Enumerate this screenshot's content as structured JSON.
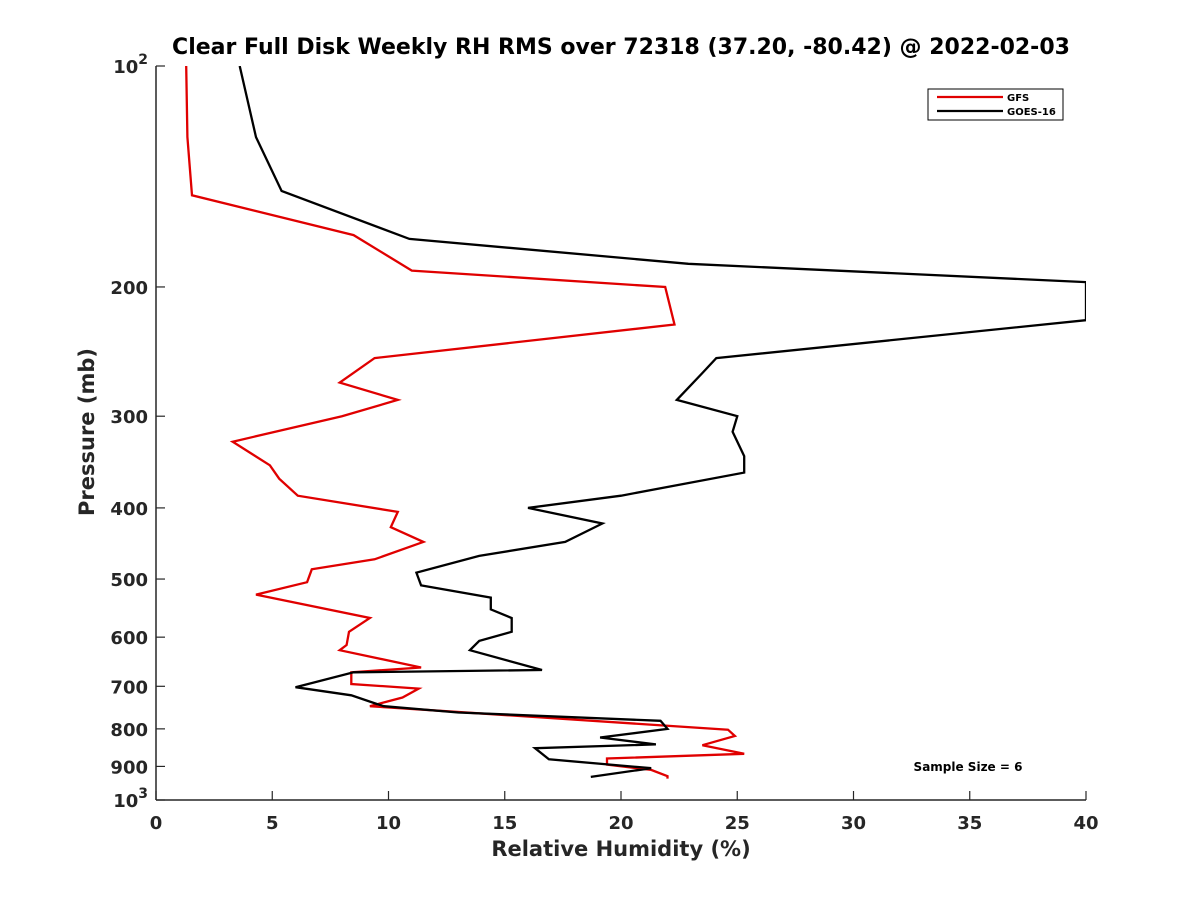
{
  "chart_data": {
    "type": "line",
    "title": "Clear Full Disk Weekly RH RMS over 72318 (37.20, -80.42) @ 2022-02-03",
    "xlabel": "Relative Humidity (%)",
    "ylabel": "Pressure (mb)",
    "xlim": [
      0,
      40
    ],
    "ylim": [
      100,
      1000
    ],
    "y_scale": "log",
    "y_reversed": true,
    "x_ticks": [
      "0",
      "5",
      "10",
      "15",
      "20",
      "25",
      "30",
      "35",
      "40"
    ],
    "y_ticks": [
      {
        "value": 100,
        "base": "10",
        "exp": "2"
      },
      {
        "value": 200,
        "label": "200"
      },
      {
        "value": 300,
        "label": "300"
      },
      {
        "value": 400,
        "label": "400"
      },
      {
        "value": 500,
        "label": "500"
      },
      {
        "value": 600,
        "label": "600"
      },
      {
        "value": 700,
        "label": "700"
      },
      {
        "value": 800,
        "label": "800"
      },
      {
        "value": 900,
        "label": "900"
      },
      {
        "value": 1000,
        "base": "10",
        "exp": "3"
      }
    ],
    "grid": false,
    "legend_position": "top-right",
    "annotation": "Sample Size = 6",
    "series": [
      {
        "name": "GFS",
        "color": "#e00000",
        "points": [
          [
            1.3,
            100
          ],
          [
            1.35,
            125
          ],
          [
            1.55,
            150
          ],
          [
            8.5,
            170
          ],
          [
            11.0,
            190
          ],
          [
            21.9,
            200
          ],
          [
            22.3,
            225
          ],
          [
            9.4,
            250
          ],
          [
            7.9,
            270
          ],
          [
            10.4,
            285
          ],
          [
            8.0,
            300
          ],
          [
            3.3,
            325
          ],
          [
            4.9,
            350
          ],
          [
            5.3,
            365
          ],
          [
            6.1,
            385
          ],
          [
            10.4,
            405
          ],
          [
            10.1,
            425
          ],
          [
            11.5,
            445
          ],
          [
            9.4,
            470
          ],
          [
            6.7,
            485
          ],
          [
            6.5,
            505
          ],
          [
            4.3,
            525
          ],
          [
            9.2,
            565
          ],
          [
            8.3,
            590
          ],
          [
            8.2,
            615
          ],
          [
            7.9,
            625
          ],
          [
            11.4,
            660
          ],
          [
            8.4,
            670
          ],
          [
            8.4,
            695
          ],
          [
            11.3,
            705
          ],
          [
            10.6,
            725
          ],
          [
            9.2,
            745
          ],
          [
            24.6,
            802
          ],
          [
            24.9,
            818
          ],
          [
            23.5,
            842
          ],
          [
            25.3,
            865
          ],
          [
            19.4,
            878
          ],
          [
            19.4,
            895
          ],
          [
            21.3,
            910
          ],
          [
            22.0,
            928
          ],
          [
            22.0,
            935
          ]
        ]
      },
      {
        "name": "GOES-16",
        "color": "#000000",
        "points": [
          [
            3.6,
            100
          ],
          [
            4.3,
            125
          ],
          [
            5.4,
            148
          ],
          [
            10.9,
            172
          ],
          [
            22.9,
            186
          ],
          [
            40.0,
            197
          ],
          [
            40.0,
            222
          ],
          [
            24.1,
            250
          ],
          [
            23.5,
            262
          ],
          [
            22.4,
            285
          ],
          [
            25.0,
            300
          ],
          [
            24.8,
            315
          ],
          [
            25.3,
            340
          ],
          [
            25.3,
            358
          ],
          [
            20.0,
            385
          ],
          [
            16.0,
            400
          ],
          [
            19.2,
            420
          ],
          [
            17.6,
            445
          ],
          [
            13.9,
            465
          ],
          [
            11.2,
            490
          ],
          [
            11.4,
            510
          ],
          [
            14.4,
            530
          ],
          [
            14.4,
            550
          ],
          [
            15.3,
            565
          ],
          [
            15.3,
            590
          ],
          [
            13.9,
            607
          ],
          [
            13.5,
            625
          ],
          [
            16.6,
            665
          ],
          [
            8.5,
            670
          ],
          [
            6.0,
            702
          ],
          [
            8.4,
            720
          ],
          [
            9.5,
            740
          ],
          [
            9.8,
            745
          ],
          [
            13.0,
            760
          ],
          [
            21.7,
            780
          ],
          [
            22.0,
            800
          ],
          [
            19.1,
            822
          ],
          [
            21.5,
            840
          ],
          [
            16.3,
            850
          ],
          [
            16.9,
            880
          ],
          [
            21.3,
            905
          ],
          [
            18.7,
            930
          ]
        ]
      }
    ]
  }
}
